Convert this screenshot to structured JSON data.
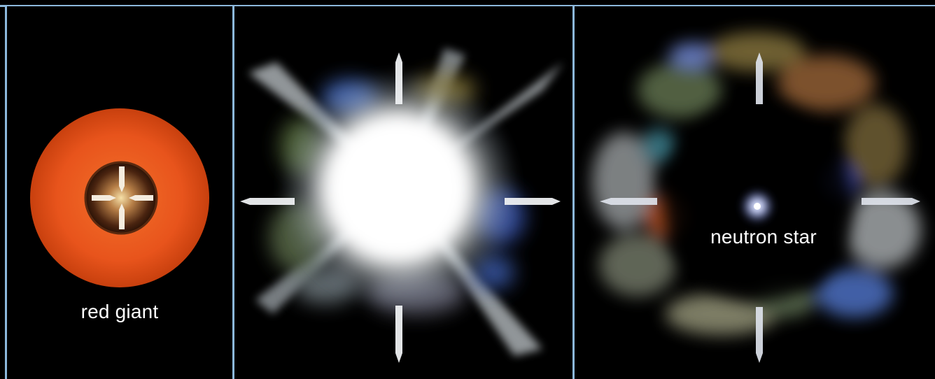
{
  "panels": [
    {
      "id": "red-giant",
      "label": "red giant"
    },
    {
      "id": "supernova",
      "label": ""
    },
    {
      "id": "remnant",
      "label": "neutron star"
    }
  ],
  "colors": {
    "frame": "#8cb8dc",
    "background": "#000000",
    "red_giant_outer": "#e8541c",
    "red_giant_core": "#3a1c08",
    "explosion_core": "#ffffff",
    "neutron_star_glow": "#b8c6ff",
    "label_text": "#ffffff"
  },
  "icons": [
    "inward-arrow-icon",
    "outward-arrow-icon",
    "neutron-star-icon"
  ]
}
